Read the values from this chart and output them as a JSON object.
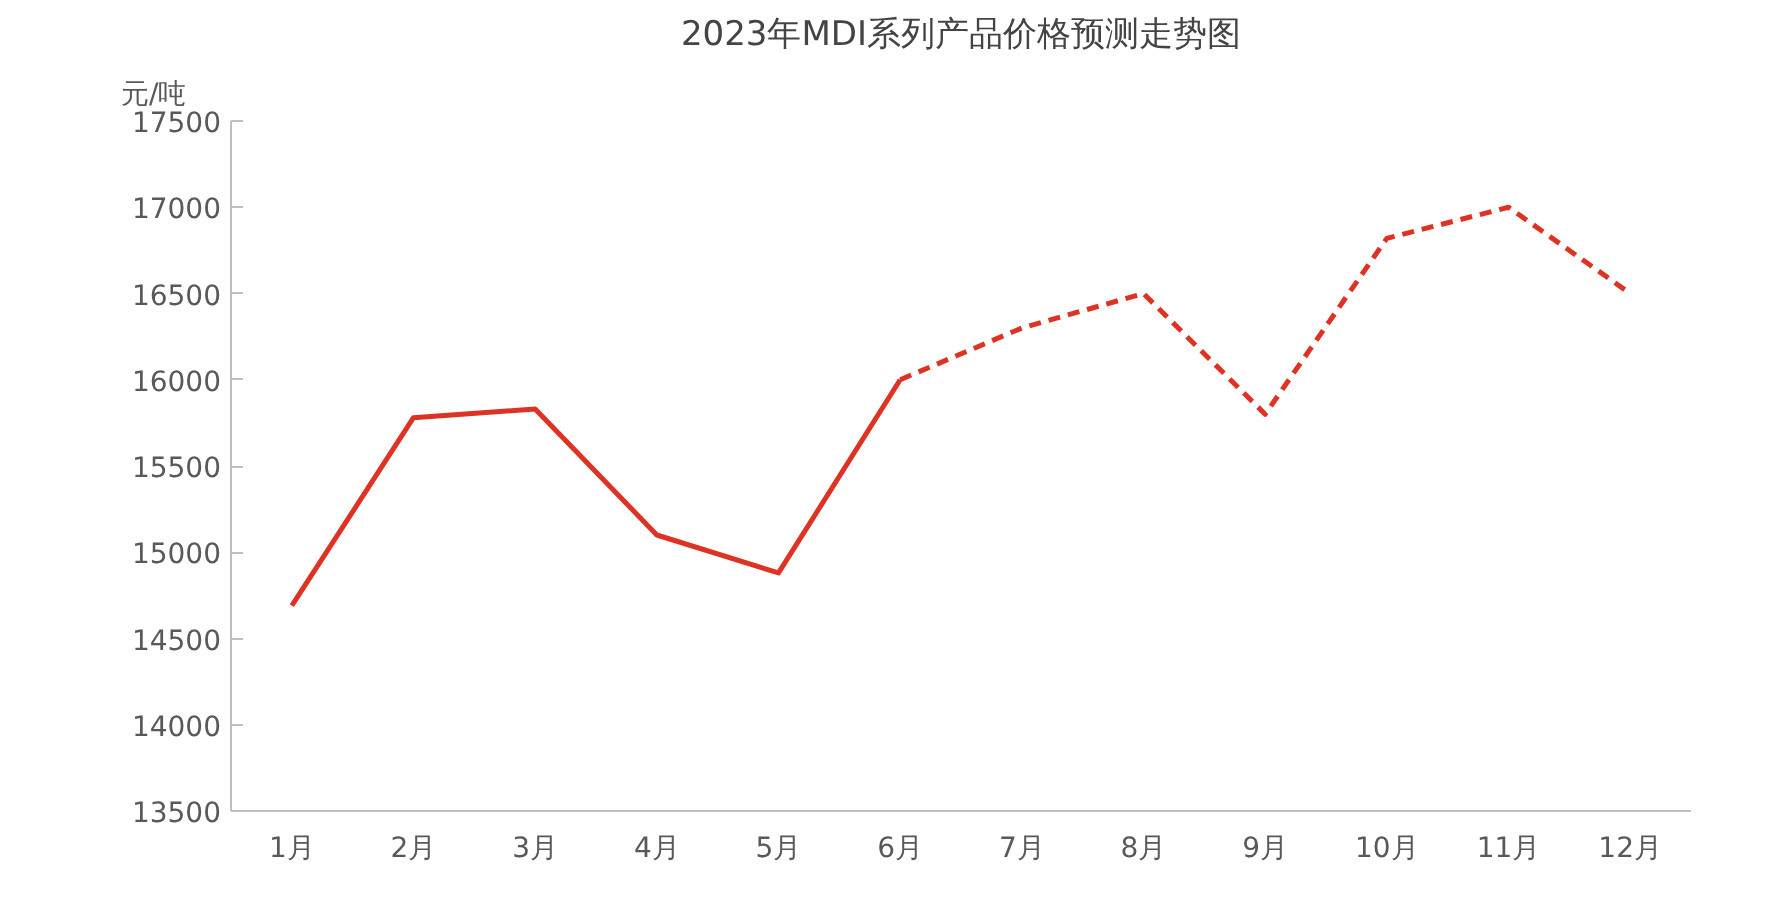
{
  "chart_data": {
    "type": "line",
    "title": "2023年MDI系列产品价格预测走势图",
    "ylabel": "元/吨",
    "categories": [
      "1月",
      "2月",
      "3月",
      "4月",
      "5月",
      "6月",
      "7月",
      "8月",
      "9月",
      "10月",
      "11月",
      "12月"
    ],
    "series": [
      {
        "color": "#dd3224",
        "line_style": "solid",
        "values": [
          14690,
          15780,
          15830,
          15100,
          14880,
          16000,
          null,
          null,
          null,
          null,
          null,
          null
        ]
      },
      {
        "color": "#dd3224",
        "line_style": "dashed",
        "values": [
          null,
          null,
          null,
          null,
          null,
          16000,
          16300,
          16500,
          15800,
          16820,
          17000,
          16500
        ]
      }
    ],
    "ylim": [
      13500,
      17500
    ],
    "yticks": [
      13500,
      14000,
      14500,
      15000,
      15500,
      16000,
      16500,
      17000,
      17500
    ],
    "grid": false,
    "marker": "none"
  }
}
